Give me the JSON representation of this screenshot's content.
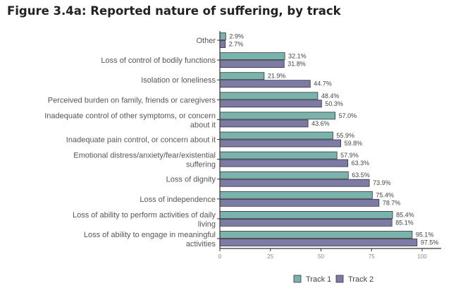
{
  "chart_data": {
    "type": "bar",
    "orientation": "horizontal",
    "title": "Figure 3.4a: Reported nature of suffering, by track",
    "categories": [
      [
        "Other"
      ],
      [
        "Loss of control of bodily functions"
      ],
      [
        "Isolation or loneliness"
      ],
      [
        "Perceived burden on family, friends or caregivers"
      ],
      [
        "Inadequate control of other symptoms, or concern",
        "about it"
      ],
      [
        "Inadequate pain control, or concern about it"
      ],
      [
        "Emotional distress/anxiety/fear/existential",
        "suffering"
      ],
      [
        "Loss of dignity"
      ],
      [
        "Loss of independence"
      ],
      [
        "Loss of ability to perform activities of daily",
        "living"
      ],
      [
        "Loss of ability to engage in meaningful",
        "activities"
      ]
    ],
    "series": [
      {
        "name": "Track 1",
        "color": "#7ab3ae",
        "values": [
          2.9,
          32.1,
          21.9,
          48.4,
          57.0,
          55.9,
          57.9,
          63.5,
          75.4,
          85.4,
          95.1
        ]
      },
      {
        "name": "Track 2",
        "color": "#7d7ba6",
        "values": [
          2.7,
          31.8,
          44.7,
          50.3,
          43.6,
          59.8,
          63.3,
          73.9,
          78.7,
          85.1,
          97.5
        ]
      }
    ],
    "value_suffix": "%",
    "xlim": [
      0,
      110
    ],
    "xticks": [
      "0",
      "25",
      "50",
      "75",
      "100"
    ],
    "grid": false,
    "legend_position": "bottom"
  }
}
